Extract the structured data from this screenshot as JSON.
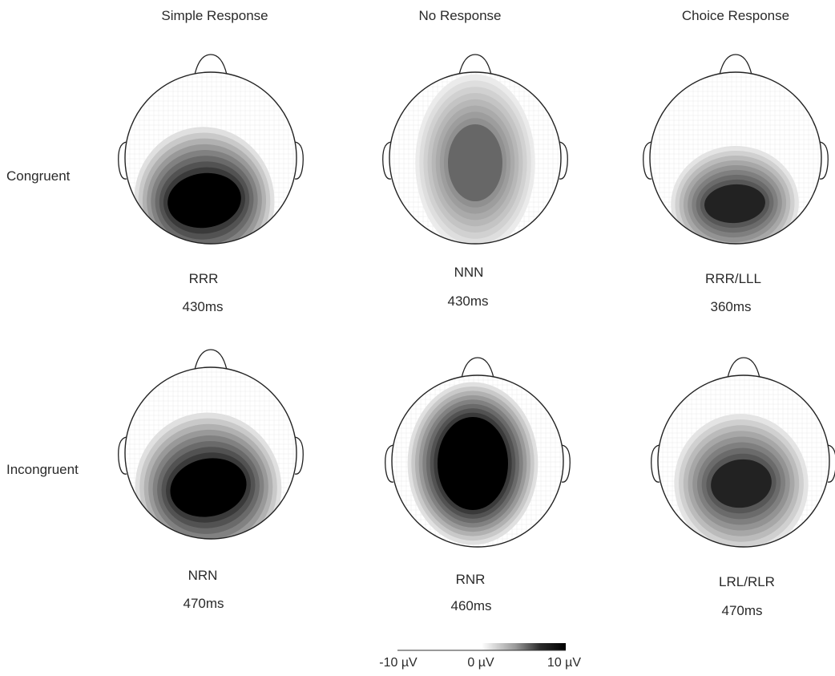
{
  "columns": [
    "Simple Response",
    "No Response",
    "Choice Response"
  ],
  "rows": [
    "Congruent",
    "Incongruent"
  ],
  "maps": [
    {
      "label": "RRR",
      "time": "430ms",
      "intensity": 1.0
    },
    {
      "label": "NNN",
      "time": "430ms",
      "intensity": 0.55
    },
    {
      "label": "RRR/LLL",
      "time": "360ms",
      "intensity": 0.85
    },
    {
      "label": "NRN",
      "time": "470ms",
      "intensity": 1.0
    },
    {
      "label": "RNR",
      "time": "460ms",
      "intensity": 1.0
    },
    {
      "label": "LRL/RLR",
      "time": "470ms",
      "intensity": 0.85
    }
  ],
  "scale": {
    "min_label": "-10 µV",
    "mid_label": "0 µV",
    "max_label": "10 µV"
  },
  "colors": {
    "outline": "#222222",
    "grid": "#cfcfcf",
    "peak": "#000000",
    "background": "#ffffff"
  }
}
